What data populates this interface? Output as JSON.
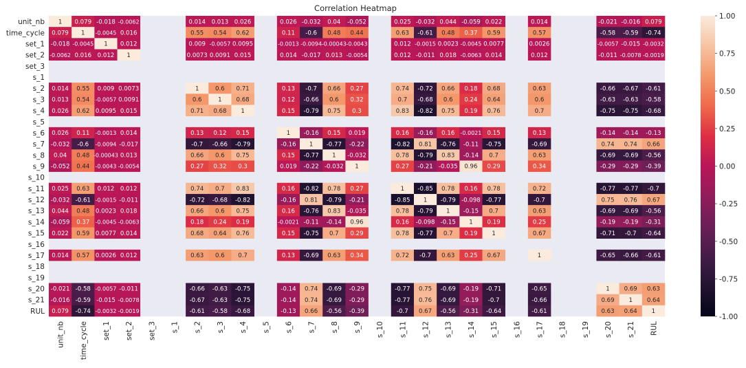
{
  "chart_data": {
    "type": "heatmap",
    "title": "Correlation Heatmap",
    "xlabel": "",
    "ylabel": "",
    "labels": [
      "unit_nb",
      "time_cycle",
      "set_1",
      "set_2",
      "set_3",
      "s_1",
      "s_2",
      "s_3",
      "s_4",
      "s_5",
      "s_6",
      "s_7",
      "s_8",
      "s_9",
      "s_10",
      "s_11",
      "s_12",
      "s_13",
      "s_14",
      "s_15",
      "s_16",
      "s_17",
      "s_18",
      "s_19",
      "s_20",
      "s_21",
      "RUL"
    ],
    "empty_labels": [
      "set_3",
      "s_1",
      "s_5",
      "s_10",
      "s_16",
      "s_18",
      "s_19"
    ],
    "matrix": {
      "unit_nb": [
        "1",
        "0.079",
        "-0.018",
        "-0.0062",
        "0.014",
        "0.013",
        "0.026",
        "0.026",
        "-0.032",
        "0.04",
        "-0.052",
        "0.025",
        "-0.032",
        "0.044",
        "-0.059",
        "0.022",
        "0.014",
        "-0.021",
        "-0.016",
        "0.079"
      ],
      "time_cycle": [
        "0.079",
        "1",
        "-0.0045",
        "0.016",
        "0.55",
        "0.54",
        "0.62",
        "0.11",
        "-0.6",
        "0.48",
        "0.44",
        "0.63",
        "-0.61",
        "0.48",
        "0.37",
        "0.59",
        "0.57",
        "-0.58",
        "-0.59",
        "-0.74"
      ],
      "set_1": [
        "-0.018",
        "-0.0045",
        "1",
        "0.012",
        "0.009",
        "-0.0057",
        "0.0095",
        "-0.0013",
        "-0.0094",
        "-0.00043",
        "-0.0043",
        "0.012",
        "-0.0015",
        "0.0023",
        "-0.0045",
        "0.0077",
        "0.0026",
        "-0.0057",
        "-0.015",
        "-0.0032"
      ],
      "set_2": [
        "-0.0062",
        "0.016",
        "0.012",
        "1",
        "0.0073",
        "0.0091",
        "0.015",
        "0.014",
        "-0.017",
        "0.013",
        "-0.0054",
        "0.012",
        "-0.011",
        "0.018",
        "-0.0063",
        "0.014",
        "0.012",
        "-0.011",
        "-0.0078",
        "-0.0019"
      ],
      "s_2": [
        "0.014",
        "0.55",
        "0.009",
        "0.0073",
        "1",
        "0.6",
        "0.71",
        "0.13",
        "-0.7",
        "0.66",
        "0.27",
        "0.74",
        "-0.72",
        "0.66",
        "0.18",
        "0.68",
        "0.63",
        "-0.66",
        "-0.67",
        "-0.61"
      ],
      "s_3": [
        "0.013",
        "0.54",
        "-0.0057",
        "0.0091",
        "0.6",
        "1",
        "0.68",
        "0.12",
        "-0.66",
        "0.6",
        "0.32",
        "0.7",
        "-0.68",
        "0.6",
        "0.24",
        "0.64",
        "0.6",
        "-0.63",
        "-0.63",
        "-0.58"
      ],
      "s_4": [
        "0.026",
        "0.62",
        "0.0095",
        "0.015",
        "0.71",
        "0.68",
        "1",
        "0.15",
        "-0.79",
        "0.75",
        "0.3",
        "0.83",
        "-0.82",
        "0.75",
        "0.19",
        "0.76",
        "0.7",
        "-0.75",
        "-0.75",
        "-0.68"
      ],
      "s_6": [
        "0.026",
        "0.11",
        "-0.0013",
        "0.014",
        "0.13",
        "0.12",
        "0.15",
        "1",
        "-0.16",
        "0.15",
        "0.019",
        "0.16",
        "-0.16",
        "0.16",
        "-0.0021",
        "0.15",
        "0.13",
        "-0.14",
        "-0.14",
        "-0.13"
      ],
      "s_7": [
        "-0.032",
        "-0.6",
        "-0.0094",
        "-0.017",
        "-0.7",
        "-0.66",
        "-0.79",
        "-0.16",
        "1",
        "-0.77",
        "-0.22",
        "-0.82",
        "0.81",
        "-0.76",
        "-0.11",
        "-0.75",
        "-0.69",
        "0.74",
        "0.74",
        "0.66"
      ],
      "s_8": [
        "0.04",
        "0.48",
        "-0.00043",
        "0.013",
        "0.66",
        "0.6",
        "0.75",
        "0.15",
        "-0.77",
        "1",
        "-0.032",
        "0.78",
        "-0.79",
        "0.83",
        "-0.14",
        "0.7",
        "0.63",
        "-0.69",
        "-0.69",
        "-0.56"
      ],
      "s_9": [
        "-0.052",
        "0.44",
        "-0.0043",
        "-0.0054",
        "0.27",
        "0.32",
        "0.3",
        "0.019",
        "-0.22",
        "-0.032",
        "1",
        "0.27",
        "-0.21",
        "-0.035",
        "0.96",
        "0.29",
        "0.34",
        "-0.29",
        "-0.29",
        "-0.39"
      ],
      "s_11": [
        "0.025",
        "0.63",
        "0.012",
        "0.012",
        "0.74",
        "0.7",
        "0.83",
        "0.16",
        "-0.82",
        "0.78",
        "0.27",
        "1",
        "-0.85",
        "0.78",
        "0.16",
        "0.78",
        "0.72",
        "-0.77",
        "-0.77",
        "-0.7"
      ],
      "s_12": [
        "-0.032",
        "-0.61",
        "-0.0015",
        "-0.011",
        "-0.72",
        "-0.68",
        "-0.82",
        "-0.16",
        "0.81",
        "-0.79",
        "-0.21",
        "-0.85",
        "1",
        "-0.79",
        "-0.098",
        "-0.77",
        "-0.7",
        "0.75",
        "0.76",
        "0.67"
      ],
      "s_13": [
        "0.044",
        "0.48",
        "0.0023",
        "0.018",
        "0.66",
        "0.6",
        "0.75",
        "0.16",
        "-0.76",
        "0.83",
        "-0.035",
        "0.78",
        "-0.79",
        "1",
        "-0.15",
        "0.7",
        "0.63",
        "-0.69",
        "-0.69",
        "-0.56"
      ],
      "s_14": [
        "-0.059",
        "0.37",
        "-0.0045",
        "-0.0063",
        "0.18",
        "0.24",
        "0.19",
        "-0.0021",
        "-0.11",
        "-0.14",
        "0.96",
        "0.16",
        "-0.098",
        "-0.15",
        "1",
        "0.19",
        "0.25",
        "-0.19",
        "-0.19",
        "-0.31"
      ],
      "s_15": [
        "0.022",
        "0.59",
        "0.0077",
        "0.014",
        "0.68",
        "0.64",
        "0.76",
        "0.15",
        "-0.75",
        "0.7",
        "0.29",
        "0.78",
        "-0.77",
        "0.7",
        "0.19",
        "1",
        "0.67",
        "-0.71",
        "-0.7",
        "-0.64"
      ],
      "s_17": [
        "0.014",
        "0.57",
        "0.0026",
        "0.012",
        "0.63",
        "0.6",
        "0.7",
        "0.13",
        "-0.69",
        "0.63",
        "0.34",
        "0.72",
        "-0.7",
        "0.63",
        "0.25",
        "0.67",
        "1",
        "-0.65",
        "-0.66",
        "-0.61"
      ],
      "s_20": [
        "-0.021",
        "-0.58",
        "-0.0057",
        "-0.011",
        "-0.66",
        "-0.63",
        "-0.75",
        "-0.14",
        "0.74",
        "-0.69",
        "-0.29",
        "-0.77",
        "0.75",
        "-0.69",
        "-0.19",
        "-0.71",
        "-0.65",
        "1",
        "0.69",
        "0.63"
      ],
      "s_21": [
        "-0.016",
        "-0.59",
        "-0.015",
        "-0.0078",
        "-0.67",
        "-0.63",
        "-0.75",
        "-0.14",
        "0.74",
        "-0.69",
        "-0.29",
        "-0.77",
        "0.76",
        "-0.69",
        "-0.19",
        "-0.7",
        "-0.66",
        "0.69",
        "1",
        "0.64"
      ],
      "RUL": [
        "0.079",
        "-0.74",
        "-0.0032",
        "-0.0019",
        "-0.61",
        "-0.58",
        "-0.68",
        "-0.13",
        "0.66",
        "-0.56",
        "-0.39",
        "-0.7",
        "0.67",
        "-0.56",
        "-0.31",
        "-0.64",
        "-0.61",
        "0.63",
        "0.64",
        "1"
      ]
    },
    "colorbar": {
      "range": [
        -1.0,
        1.0
      ],
      "ticks": [
        "1.00",
        "0.75",
        "0.50",
        "0.25",
        "0.00",
        "-0.25",
        "-0.50",
        "-0.75",
        "-1.00"
      ],
      "tick_values": [
        1.0,
        0.75,
        0.5,
        0.25,
        0.0,
        -0.25,
        -0.5,
        -0.75,
        -1.0
      ]
    },
    "colormap": "rocket",
    "nan_color": "#eaeaf2"
  }
}
